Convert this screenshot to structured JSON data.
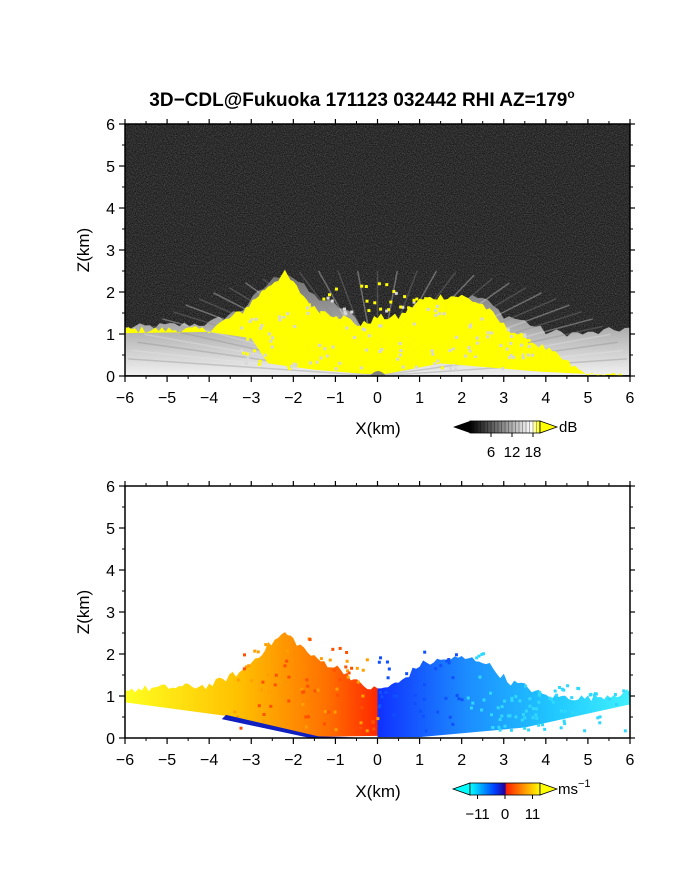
{
  "title": "3D−CDL@Fukuoka 171123 032442 RHI AZ=179",
  "title_superscript": "o",
  "chart_data": [
    {
      "type": "heatmap",
      "name": "reflectivity",
      "xlabel": "X(km)",
      "ylabel": "Z(km)",
      "xlim": [
        -6,
        6
      ],
      "ylim": [
        0,
        6
      ],
      "xticks": [
        "−6",
        "−5",
        "−4",
        "−3",
        "−2",
        "−1",
        "0",
        "1",
        "2",
        "3",
        "4",
        "5",
        "6"
      ],
      "yticks": [
        "0",
        "1",
        "2",
        "3",
        "4",
        "5",
        "6"
      ],
      "background": "noise (grayscale)",
      "colorbar": {
        "unit": "dB",
        "ticks": [
          "6",
          "12",
          "18"
        ],
        "tick_values": [
          6,
          12,
          18
        ],
        "range": [
          0,
          20
        ],
        "colors": [
          "#000000",
          "#ffffff",
          "#ffff00"
        ]
      },
      "echo_top_profile": {
        "x_km": [
          -6,
          -4,
          -3.2,
          -2.6,
          -2.2,
          -2.0,
          -1.5,
          -0.8,
          -0.4,
          0,
          0.5,
          1.0,
          1.5,
          2.0,
          2.5,
          3.0,
          3.5,
          4.0,
          5.0,
          6.0
        ],
        "top_km": [
          1.15,
          1.25,
          1.6,
          2.2,
          2.5,
          2.35,
          1.9,
          1.6,
          1.25,
          1.15,
          1.3,
          1.75,
          1.85,
          1.9,
          1.85,
          1.45,
          1.3,
          1.05,
          1.0,
          1.15
        ],
        "high_value_top_km": [
          1.1,
          1.1,
          1.55,
          2.15,
          2.45,
          2.2,
          1.6,
          1.4,
          1.2,
          1.4,
          1.4,
          1.8,
          1.9,
          1.9,
          1.7,
          1.2,
          0.9,
          0.65,
          0,
          0
        ]
      }
    },
    {
      "type": "heatmap",
      "name": "doppler-velocity",
      "xlabel": "X(km)",
      "ylabel": "Z(km)",
      "xlim": [
        -6,
        6
      ],
      "ylim": [
        0,
        6
      ],
      "xticks": [
        "−6",
        "−5",
        "−4",
        "−3",
        "−2",
        "−1",
        "0",
        "1",
        "2",
        "3",
        "4",
        "5",
        "6"
      ],
      "yticks": [
        "0",
        "1",
        "2",
        "3",
        "4",
        "5",
        "6"
      ],
      "background": "#ffffff",
      "colorbar": {
        "unit": "ms",
        "unit_superscript": "−1",
        "ticks": [
          "−11",
          "0",
          "11"
        ],
        "tick_values": [
          -11,
          0,
          11
        ],
        "range": [
          -14,
          14
        ],
        "colors": [
          "#00ffff",
          "#0040ff",
          "#ff2000",
          "#ffff00"
        ]
      },
      "echo_top_profile": {
        "x_km": [
          -6,
          -4,
          -3.2,
          -2.6,
          -2.2,
          -2.0,
          -1.5,
          -0.8,
          -0.4,
          0,
          0.5,
          1.0,
          1.5,
          2.0,
          2.5,
          3.0,
          3.5,
          4.0,
          5.0,
          6.0
        ],
        "top_km": [
          1.15,
          1.25,
          1.6,
          2.2,
          2.5,
          2.35,
          1.9,
          1.6,
          1.25,
          1.15,
          1.3,
          1.75,
          1.85,
          1.9,
          1.85,
          1.45,
          1.3,
          1.05,
          1.0,
          1.15
        ]
      },
      "velocity_sign": "positive for X<0 (0 to 11 m/s, red near center to yellow far), negative for X>0 (0 to −11 m/s, blue near center to cyan far)"
    }
  ]
}
